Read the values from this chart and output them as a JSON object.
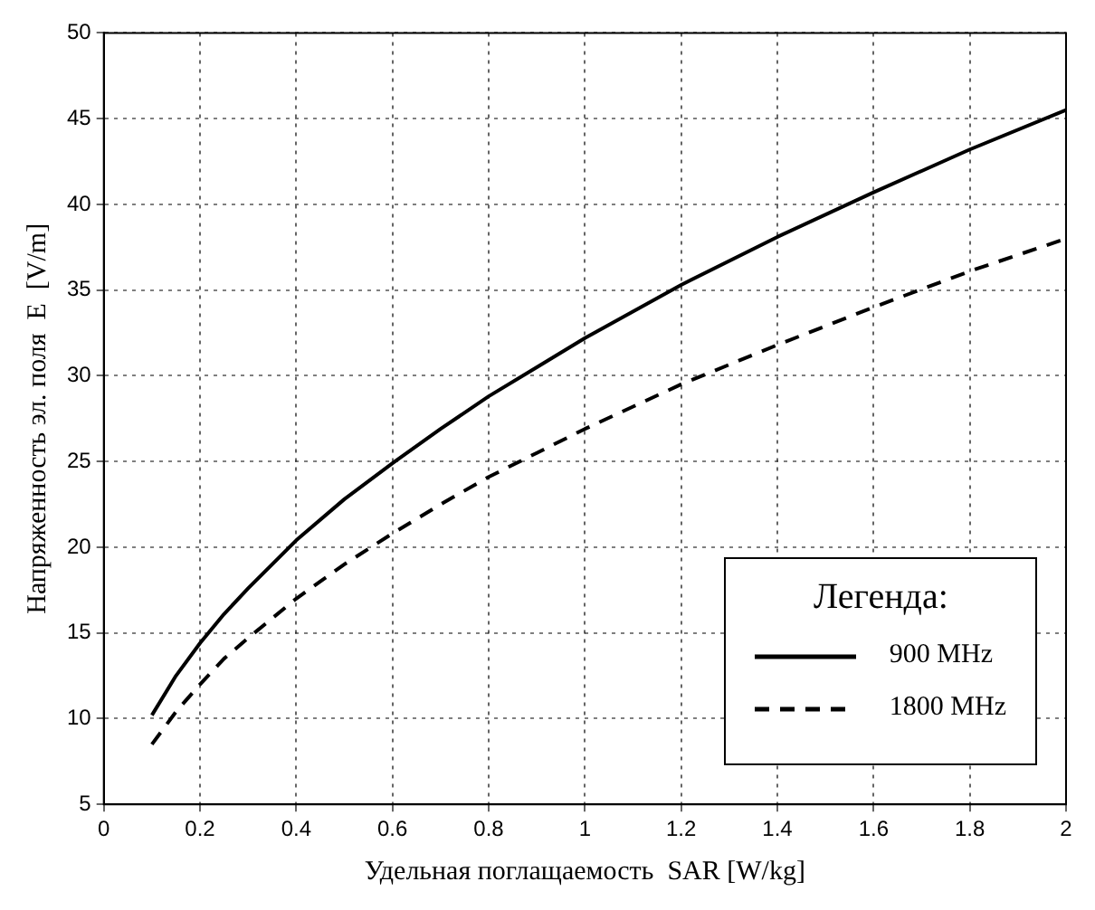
{
  "chart_data": {
    "type": "line",
    "xlabel": "Удельная поглащаемость  SAR [W/kg]",
    "ylabel": "Напряженность эл. поля  E  [V/m]",
    "legend_title": "Легенда:",
    "x": [
      0.1,
      0.15,
      0.2,
      0.25,
      0.3,
      0.4,
      0.5,
      0.6,
      0.7,
      0.8,
      0.9,
      1.0,
      1.2,
      1.4,
      1.6,
      1.8,
      2.0
    ],
    "series": [
      {
        "name": "900 MHz",
        "color": "#000000",
        "line_style": "solid",
        "values": [
          10.2,
          12.5,
          14.4,
          16.1,
          17.6,
          20.4,
          22.8,
          24.9,
          26.9,
          28.8,
          30.5,
          32.2,
          35.3,
          38.1,
          40.7,
          43.2,
          45.5
        ]
      },
      {
        "name": "1800 MHz",
        "color": "#000000",
        "line_style": "dashed",
        "values": [
          8.5,
          10.4,
          12.0,
          13.5,
          14.7,
          17.0,
          19.0,
          20.8,
          22.5,
          24.1,
          25.5,
          26.9,
          29.5,
          31.8,
          34.0,
          36.1,
          38.0
        ]
      }
    ],
    "xlim": [
      0,
      2
    ],
    "xticks": [
      0,
      0.2,
      0.4,
      0.6,
      0.8,
      1,
      1.2,
      1.4,
      1.6,
      1.8,
      2
    ],
    "ylim": [
      5,
      50
    ],
    "yticks": [
      5,
      10,
      15,
      20,
      25,
      30,
      35,
      40,
      45,
      50
    ],
    "grid": true,
    "legend": "bottom right",
    "marker": "none"
  }
}
